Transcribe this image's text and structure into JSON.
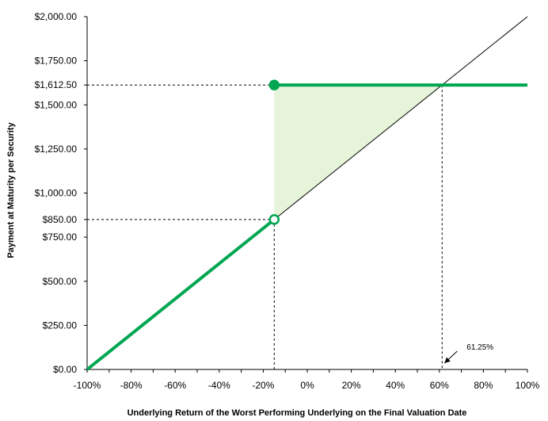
{
  "chart_data": {
    "type": "line",
    "xlabel": "Underlying Return of the Worst Performing Underlying on the Final Valuation Date",
    "ylabel": "Payment at Maturity per Security",
    "xlim": [
      -100,
      100
    ],
    "ylim": [
      0,
      2000
    ],
    "x_ticks": [
      -100,
      -80,
      -60,
      -40,
      -20,
      0,
      20,
      40,
      60,
      80,
      100
    ],
    "x_tick_labels": [
      "-100%",
      "-80%",
      "-60%",
      "-40%",
      "-20%",
      "0%",
      "20%",
      "40%",
      "60%",
      "80%",
      "100%"
    ],
    "y_ticks": [
      0,
      250,
      500,
      750,
      850,
      1000,
      1250,
      1500,
      1612.5,
      1750,
      2000
    ],
    "y_tick_labels": [
      "$0.00",
      "$250.00",
      "$500.00",
      "$750.00",
      "$850.00",
      "$1,000.00",
      "$1,250.00",
      "$1,500.00",
      "$1,612.50",
      "$1,750.00",
      "$2,000.00"
    ],
    "grid": false,
    "series": [
      {
        "role": "underlying-return-line",
        "color": "#000000",
        "x": [
          -100,
          100
        ],
        "y": [
          0,
          2000
        ]
      },
      {
        "role": "payment-below-barrier",
        "color": "#00a651",
        "x": [
          -100,
          -15
        ],
        "y": [
          0,
          850
        ]
      },
      {
        "role": "payment-above-barrier",
        "color": "#00a651",
        "x": [
          -15,
          100
        ],
        "y": [
          1612.5,
          1612.5
        ]
      }
    ],
    "barrier_x": -15,
    "breakeven_x": 61.25,
    "shaded_region": {
      "color": "#e6f4d9",
      "points": [
        [
          -15,
          850
        ],
        [
          -15,
          1612.5
        ],
        [
          61.25,
          1612.5
        ]
      ]
    },
    "markers": [
      {
        "x": -15,
        "y": 1612.5,
        "style": "filled",
        "color": "#00a651"
      },
      {
        "x": -15,
        "y": 850,
        "style": "open",
        "color": "#00a651"
      }
    ],
    "guides": [
      {
        "from": [
          -100,
          1612.5
        ],
        "to": [
          61.25,
          1612.5
        ]
      },
      {
        "from": [
          -100,
          850
        ],
        "to": [
          -15,
          850
        ]
      },
      {
        "from": [
          -15,
          850
        ],
        "to": [
          -15,
          0
        ]
      },
      {
        "from": [
          61.25,
          1612.5
        ],
        "to": [
          61.25,
          0
        ]
      }
    ],
    "annotation": {
      "text": "61.25%",
      "x": 61.25,
      "y": 0
    }
  }
}
